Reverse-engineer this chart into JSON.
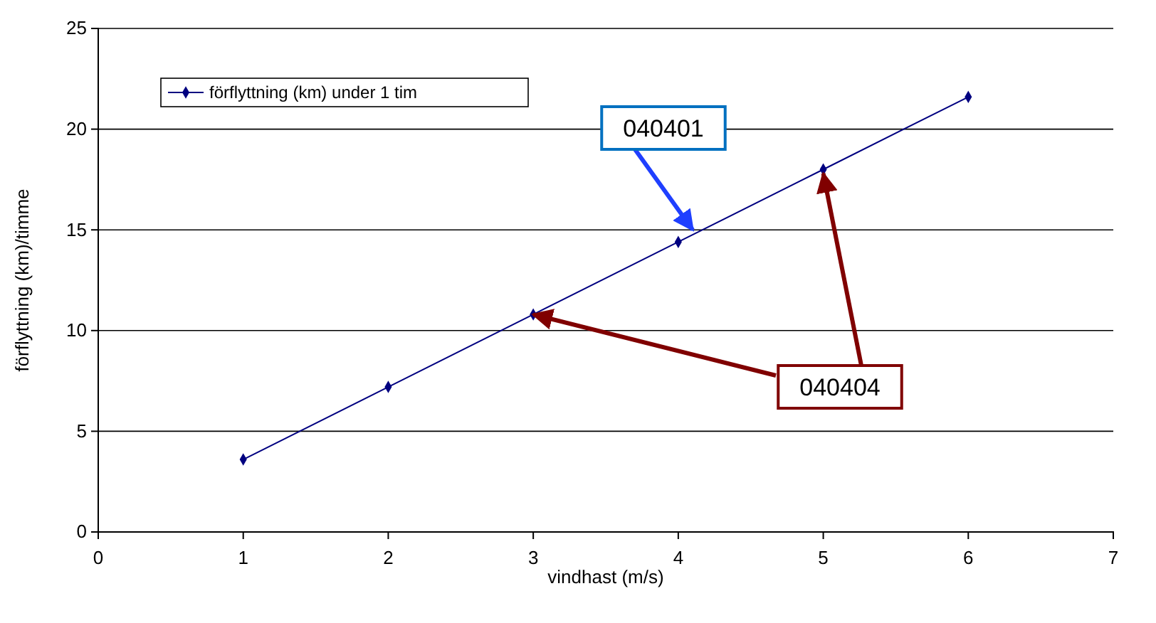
{
  "chart_data": {
    "type": "line",
    "xlabel": "vindhast (m/s)",
    "ylabel": "förflyttning (km)/timme",
    "x": [
      1,
      2,
      3,
      4,
      5,
      6
    ],
    "series": [
      {
        "name": "förflyttning (km) under 1 tim",
        "color": "#000080",
        "values": [
          3.6,
          7.2,
          10.8,
          14.4,
          18,
          21.6
        ]
      }
    ],
    "xlim": [
      0,
      7
    ],
    "xticks": [
      0,
      1,
      2,
      3,
      4,
      5,
      6,
      7
    ],
    "ylim": [
      0,
      25
    ],
    "yticks": [
      0,
      5,
      10,
      15,
      20,
      25
    ],
    "grid": "y",
    "legend": "top left",
    "marker": "diamond",
    "line_style": "solid",
    "annotations": [
      {
        "text": "040401",
        "x": 4.1,
        "y": 15
      },
      {
        "text": "040404",
        "x": 5,
        "y": 17.8
      }
    ]
  }
}
